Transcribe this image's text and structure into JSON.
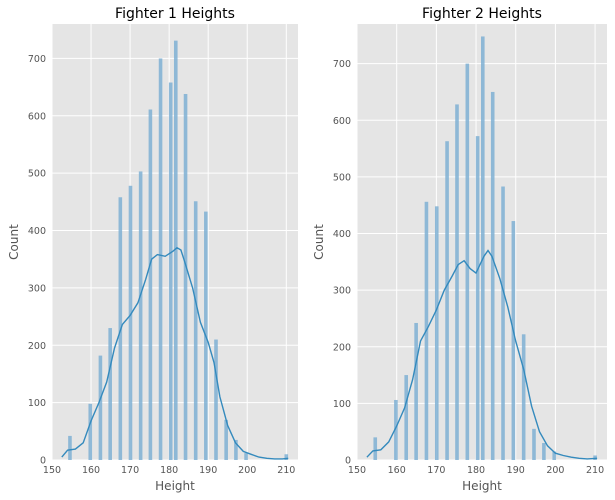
{
  "chart_data": [
    {
      "type": "histogram",
      "title": "Fighter 1 Heights",
      "xlabel": "Height",
      "ylabel": "Count",
      "xlim": [
        150,
        213
      ],
      "ylim": [
        0,
        760
      ],
      "xticks": [
        150,
        160,
        170,
        180,
        190,
        200,
        210
      ],
      "yticks": [
        0,
        100,
        200,
        300,
        400,
        500,
        600,
        700
      ],
      "grid": true,
      "bar_color": "#7fb0d3",
      "kde_color": "#348abd",
      "bins": [
        {
          "x": 154.6,
          "value": 42
        },
        {
          "x": 159.8,
          "value": 98
        },
        {
          "x": 162.4,
          "value": 182
        },
        {
          "x": 164.9,
          "value": 230
        },
        {
          "x": 167.5,
          "value": 458
        },
        {
          "x": 170.1,
          "value": 478
        },
        {
          "x": 172.7,
          "value": 503
        },
        {
          "x": 175.2,
          "value": 611
        },
        {
          "x": 177.8,
          "value": 700
        },
        {
          "x": 180.4,
          "value": 658
        },
        {
          "x": 181.7,
          "value": 731
        },
        {
          "x": 184.2,
          "value": 638
        },
        {
          "x": 186.8,
          "value": 451
        },
        {
          "x": 189.4,
          "value": 433
        },
        {
          "x": 192.0,
          "value": 210
        },
        {
          "x": 194.6,
          "value": 70
        },
        {
          "x": 197.1,
          "value": 35
        },
        {
          "x": 199.7,
          "value": 12
        },
        {
          "x": 210.0,
          "value": 10
        }
      ],
      "kde": [
        [
          152.5,
          5
        ],
        [
          154,
          17
        ],
        [
          156,
          19
        ],
        [
          158,
          30
        ],
        [
          160,
          68
        ],
        [
          162,
          100
        ],
        [
          164,
          136
        ],
        [
          166,
          195
        ],
        [
          168,
          236
        ],
        [
          170,
          252
        ],
        [
          172,
          274
        ],
        [
          174,
          315
        ],
        [
          175.5,
          350
        ],
        [
          177,
          358
        ],
        [
          179,
          355
        ],
        [
          181,
          364
        ],
        [
          182,
          370
        ],
        [
          183,
          366
        ],
        [
          184,
          345
        ],
        [
          186,
          300
        ],
        [
          188,
          240
        ],
        [
          190,
          205
        ],
        [
          191.5,
          170
        ],
        [
          193,
          110
        ],
        [
          195,
          60
        ],
        [
          197,
          30
        ],
        [
          199,
          15
        ],
        [
          201,
          10
        ],
        [
          203,
          5
        ],
        [
          205,
          3
        ],
        [
          207,
          2
        ],
        [
          209,
          2
        ],
        [
          210.5,
          3
        ]
      ]
    },
    {
      "type": "histogram",
      "title": "Fighter 2 Heights",
      "xlabel": "Height",
      "ylabel": "Count",
      "xlim": [
        150,
        213
      ],
      "ylim": [
        0,
        770
      ],
      "xticks": [
        150,
        160,
        170,
        180,
        190,
        200,
        210
      ],
      "yticks": [
        0,
        100,
        200,
        300,
        400,
        500,
        600,
        700
      ],
      "grid": true,
      "bar_color": "#7fb0d3",
      "kde_color": "#348abd",
      "bins": [
        {
          "x": 154.6,
          "value": 40
        },
        {
          "x": 159.8,
          "value": 106
        },
        {
          "x": 162.4,
          "value": 150
        },
        {
          "x": 164.9,
          "value": 242
        },
        {
          "x": 167.5,
          "value": 456
        },
        {
          "x": 170.1,
          "value": 448
        },
        {
          "x": 172.7,
          "value": 563
        },
        {
          "x": 175.2,
          "value": 628
        },
        {
          "x": 177.8,
          "value": 700
        },
        {
          "x": 180.4,
          "value": 572
        },
        {
          "x": 181.7,
          "value": 748
        },
        {
          "x": 184.2,
          "value": 650
        },
        {
          "x": 186.8,
          "value": 483
        },
        {
          "x": 189.4,
          "value": 422
        },
        {
          "x": 192.0,
          "value": 222
        },
        {
          "x": 194.6,
          "value": 55
        },
        {
          "x": 197.1,
          "value": 30
        },
        {
          "x": 199.7,
          "value": 15
        },
        {
          "x": 210.0,
          "value": 8
        }
      ],
      "kde": [
        [
          152.5,
          5
        ],
        [
          154,
          16
        ],
        [
          156,
          18
        ],
        [
          158,
          32
        ],
        [
          160,
          60
        ],
        [
          162,
          92
        ],
        [
          164,
          142
        ],
        [
          166,
          210
        ],
        [
          168,
          236
        ],
        [
          170,
          265
        ],
        [
          172,
          300
        ],
        [
          174,
          325
        ],
        [
          175.5,
          345
        ],
        [
          177,
          352
        ],
        [
          178.5,
          338
        ],
        [
          180,
          330
        ],
        [
          182,
          360
        ],
        [
          183,
          370
        ],
        [
          184,
          360
        ],
        [
          186,
          320
        ],
        [
          188,
          270
        ],
        [
          190,
          210
        ],
        [
          192,
          160
        ],
        [
          194,
          95
        ],
        [
          196,
          50
        ],
        [
          198,
          25
        ],
        [
          200,
          12
        ],
        [
          202,
          8
        ],
        [
          204,
          5
        ],
        [
          206,
          3
        ],
        [
          208,
          2
        ],
        [
          210.5,
          3
        ]
      ]
    }
  ]
}
